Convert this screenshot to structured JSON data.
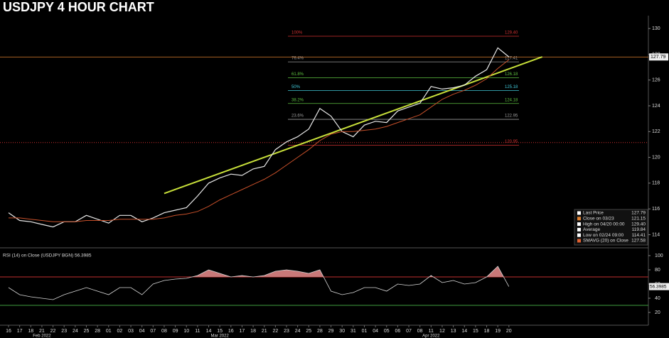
{
  "chart_data": {
    "type": "line",
    "title": "USDJPY 4 HOUR CHART",
    "categories": [
      "16",
      "17",
      "18",
      "21",
      "22",
      "23",
      "24",
      "25",
      "28",
      "01",
      "02",
      "03",
      "04",
      "07",
      "08",
      "09",
      "10",
      "11",
      "14",
      "15",
      "16",
      "17",
      "18",
      "21",
      "22",
      "23",
      "24",
      "25",
      "28",
      "29",
      "30",
      "31",
      "01",
      "04",
      "05",
      "06",
      "07",
      "08",
      "11",
      "12",
      "13",
      "14",
      "15",
      "18",
      "19",
      "20"
    ],
    "months": [
      {
        "index": 3,
        "label": "Feb 2022"
      },
      {
        "index": 19,
        "label": "Mar 2022"
      },
      {
        "index": 38,
        "label": "Apr 2022"
      }
    ],
    "series": [
      {
        "name": "Close",
        "color": "#e8e8e8",
        "values": [
          115.7,
          115.1,
          115.0,
          114.8,
          114.6,
          115.0,
          115.0,
          115.5,
          115.2,
          114.9,
          115.5,
          115.5,
          115.0,
          115.3,
          115.7,
          115.9,
          116.1,
          117.0,
          118.0,
          118.4,
          118.7,
          118.6,
          119.1,
          119.3,
          120.6,
          121.2,
          121.6,
          122.2,
          123.8,
          123.2,
          122.0,
          121.6,
          122.5,
          122.8,
          122.7,
          123.6,
          123.9,
          124.2,
          125.5,
          125.3,
          125.4,
          125.6,
          126.3,
          126.8,
          128.5,
          127.8
        ]
      },
      {
        "name": "SMAVG (20)",
        "color": "#c8502a",
        "values": [
          115.3,
          115.3,
          115.2,
          115.1,
          115.0,
          115.0,
          115.0,
          115.1,
          115.1,
          115.1,
          115.2,
          115.2,
          115.2,
          115.2,
          115.3,
          115.5,
          115.6,
          115.8,
          116.2,
          116.7,
          117.1,
          117.5,
          117.9,
          118.3,
          118.8,
          119.4,
          120.0,
          120.6,
          121.3,
          121.8,
          122.0,
          122.0,
          122.1,
          122.2,
          122.4,
          122.7,
          123.0,
          123.3,
          123.9,
          124.5,
          124.9,
          125.2,
          125.6,
          126.1,
          126.9,
          127.58
        ]
      }
    ],
    "ylim": [
      113.2,
      131
    ],
    "yticks": [
      114,
      116,
      118,
      120,
      122,
      124,
      126,
      128,
      130
    ],
    "trendline": {
      "x": [
        14,
        48
      ],
      "y": [
        117.2,
        127.8
      ],
      "color": "#c8e03a"
    },
    "fib_levels": [
      {
        "label": "100%",
        "value": 129.4,
        "value_label": "129.40",
        "color": "#d03030"
      },
      {
        "label": "76.4%",
        "value": 127.41,
        "value_label": "127.41",
        "color": "#9a9a9a"
      },
      {
        "label": "61.8%",
        "value": 126.18,
        "value_label": "126.18",
        "color": "#5ec040"
      },
      {
        "label": "50%",
        "value": 125.18,
        "value_label": "125.18",
        "color": "#40c8d8"
      },
      {
        "label": "38.2%",
        "value": 124.18,
        "value_label": "124.18",
        "color": "#5ec040"
      },
      {
        "label": "23.6%",
        "value": 122.95,
        "value_label": "122.95",
        "color": "#9a9a9a"
      },
      {
        "value": 120.95,
        "value_label": "120.95",
        "color": "#d03030"
      }
    ],
    "legend": [
      {
        "label": "Last Price",
        "value": 127.79,
        "value_label": "127.79",
        "color": "#ffffff"
      },
      {
        "label": "Close on 03/23",
        "value": 121.15,
        "value_label": "121.15",
        "color": "#e08030"
      },
      {
        "label": "High on 04/20 00:00",
        "value": 129.4,
        "value_label": "129.40",
        "color": "#ffffff"
      },
      {
        "label": "Average",
        "value": 119.84,
        "value_label": "119.84",
        "color": "#ffffff"
      },
      {
        "label": "Low on 02/24 09:00",
        "value": 114.41,
        "value_label": "114.41",
        "color": "#ffffff"
      },
      {
        "label": "SMAVG (20) on Close",
        "value": 127.58,
        "value_label": "127.58",
        "color": "#e06030"
      }
    ],
    "rsi": {
      "title": "RSI (14)  on Close (USDJPY BGN) 56.3985",
      "color": "#d8d8d8",
      "values": [
        55,
        45,
        42,
        40,
        38,
        45,
        50,
        55,
        50,
        45,
        55,
        55,
        45,
        60,
        65,
        67,
        68,
        72,
        80,
        75,
        70,
        72,
        70,
        72,
        78,
        80,
        78,
        75,
        80,
        50,
        45,
        48,
        55,
        55,
        50,
        60,
        58,
        60,
        72,
        62,
        65,
        60,
        62,
        70,
        85,
        56.3985
      ],
      "value_label": "56.3985",
      "ylim": [
        5,
        108
      ],
      "yticks": [
        20,
        40,
        60,
        80,
        100
      ],
      "upper": 70,
      "lower": 30
    }
  }
}
